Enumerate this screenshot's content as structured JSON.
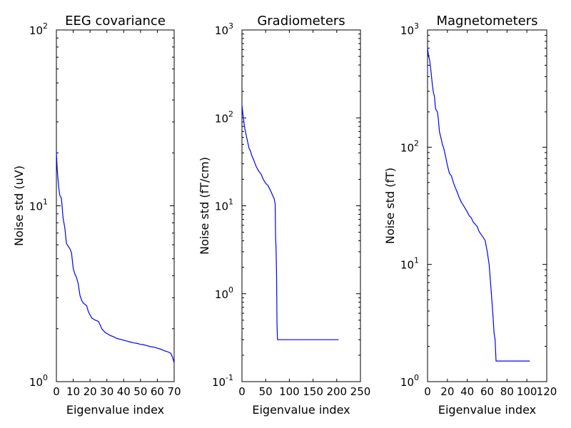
{
  "chart_data": [
    {
      "type": "line",
      "title": "EEG covariance",
      "xlabel": "Eigenvalue index",
      "ylabel": "Noise std (uV)",
      "xlim": [
        0,
        70
      ],
      "ylim": [
        1,
        100
      ],
      "yscale": "log",
      "xticks": [
        "0",
        "10",
        "20",
        "30",
        "40",
        "50",
        "60",
        "70"
      ],
      "xtick_values": [
        0,
        10,
        20,
        30,
        40,
        50,
        60,
        70
      ],
      "yticks": [
        {
          "base": "10",
          "exp": "0",
          "value": 1
        },
        {
          "base": "10",
          "exp": "1",
          "value": 10
        },
        {
          "base": "10",
          "exp": "2",
          "value": 100
        }
      ],
      "color": "#0000ff",
      "series": [
        {
          "x": [
            0,
            0.5,
            1,
            1.5,
            2,
            3,
            4,
            5,
            6,
            7,
            8,
            9,
            10,
            11,
            12,
            13,
            14,
            15,
            16,
            17,
            18,
            19,
            20,
            21,
            22,
            23,
            24,
            25,
            26,
            27,
            28,
            29,
            30,
            32,
            34,
            36,
            38,
            40,
            42,
            44,
            46,
            48,
            50,
            52,
            54,
            56,
            58,
            60,
            62,
            64,
            66,
            68,
            69,
            70
          ],
          "y": [
            20,
            16,
            14,
            12.5,
            11.5,
            11,
            8.5,
            7.5,
            6.1,
            5.9,
            5.7,
            5.4,
            4.4,
            4.1,
            3.9,
            3.6,
            3.1,
            2.9,
            2.8,
            2.75,
            2.7,
            2.5,
            2.4,
            2.3,
            2.27,
            2.24,
            2.22,
            2.2,
            2.1,
            2.0,
            1.95,
            1.9,
            1.88,
            1.83,
            1.8,
            1.76,
            1.74,
            1.72,
            1.7,
            1.68,
            1.66,
            1.65,
            1.63,
            1.62,
            1.6,
            1.58,
            1.57,
            1.55,
            1.53,
            1.5,
            1.48,
            1.45,
            1.38,
            1.28
          ]
        }
      ]
    },
    {
      "type": "line",
      "title": "Gradiometers",
      "xlabel": "Eigenvalue index",
      "ylabel": "Noise std (fT/cm)",
      "xlim": [
        0,
        250
      ],
      "ylim": [
        0.1,
        1000
      ],
      "yscale": "log",
      "xticks": [
        "0",
        "50",
        "100",
        "150",
        "200",
        "250"
      ],
      "xtick_values": [
        0,
        50,
        100,
        150,
        200,
        250
      ],
      "yticks": [
        {
          "base": "10",
          "exp": "-1",
          "value": 0.1
        },
        {
          "base": "10",
          "exp": "0",
          "value": 1
        },
        {
          "base": "10",
          "exp": "1",
          "value": 10
        },
        {
          "base": "10",
          "exp": "2",
          "value": 100
        },
        {
          "base": "10",
          "exp": "3",
          "value": 1000
        }
      ],
      "color": "#0000ff",
      "series": [
        {
          "x": [
            0,
            2,
            4,
            6,
            8,
            10,
            12,
            15,
            18,
            20,
            25,
            30,
            35,
            40,
            45,
            50,
            55,
            60,
            65,
            68,
            70,
            71,
            72,
            73,
            74,
            75,
            200,
            204
          ],
          "y": [
            140,
            110,
            90,
            75,
            67,
            60,
            53,
            45,
            42,
            38,
            33,
            28,
            25,
            23,
            20,
            18,
            17,
            15,
            13,
            12,
            10.5,
            4.5,
            3.2,
            1.6,
            0.45,
            0.3,
            0.3,
            0.3
          ]
        }
      ]
    },
    {
      "type": "line",
      "title": "Magnetometers",
      "xlabel": "Eigenvalue index",
      "ylabel": "Noise std (fT)",
      "xlim": [
        0,
        120
      ],
      "ylim": [
        1,
        1000
      ],
      "yscale": "log",
      "xticks": [
        "0",
        "20",
        "40",
        "60",
        "80",
        "100",
        "120"
      ],
      "xtick_values": [
        0,
        20,
        40,
        60,
        80,
        100,
        120
      ],
      "yticks": [
        {
          "base": "10",
          "exp": "0",
          "value": 1
        },
        {
          "base": "10",
          "exp": "1",
          "value": 10
        },
        {
          "base": "10",
          "exp": "2",
          "value": 100
        },
        {
          "base": "10",
          "exp": "3",
          "value": 1000
        }
      ],
      "color": "#0000ff",
      "series": [
        {
          "x": [
            0,
            1,
            2,
            3,
            4,
            5,
            6,
            7,
            8,
            9,
            10,
            11,
            12,
            13,
            14,
            15,
            16,
            18,
            20,
            22,
            24,
            26,
            28,
            30,
            32,
            34,
            36,
            38,
            40,
            42,
            44,
            46,
            48,
            50,
            52,
            54,
            56,
            58,
            60,
            62,
            64,
            66,
            67,
            68,
            69,
            70,
            71,
            72,
            103
          ],
          "y": [
            700,
            600,
            560,
            480,
            400,
            330,
            290,
            270,
            215,
            205,
            200,
            170,
            135,
            125,
            115,
            105,
            100,
            85,
            70,
            60,
            57,
            50,
            45,
            41,
            37,
            34,
            32,
            30,
            28,
            26,
            25,
            23,
            22,
            21,
            19,
            18,
            17,
            16,
            13,
            10,
            6,
            3.5,
            2.6,
            2.3,
            1.5,
            1.5,
            1.5,
            1.5,
            1.5
          ]
        }
      ]
    }
  ]
}
